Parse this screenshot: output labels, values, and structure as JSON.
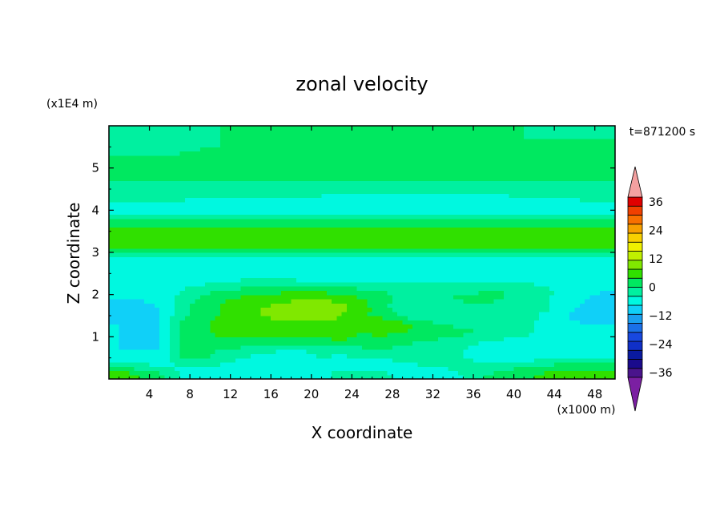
{
  "chart_data": {
    "type": "heatmap",
    "title": "zonal velocity",
    "xlabel": "X coordinate",
    "ylabel": "Z coordinate",
    "x_scale_label": "(x1000 m)",
    "y_scale_label": "(x1E4 m)",
    "time_label": "t=871200 s",
    "xlim": [
      0,
      50
    ],
    "ylim": [
      0,
      6
    ],
    "x_ticks": [
      "4",
      "8",
      "12",
      "16",
      "20",
      "24",
      "28",
      "32",
      "36",
      "40",
      "44",
      "48"
    ],
    "x_tick_values": [
      4,
      8,
      12,
      16,
      20,
      24,
      28,
      32,
      36,
      40,
      44,
      48
    ],
    "y_ticks": [
      "1",
      "2",
      "3",
      "4",
      "5"
    ],
    "y_tick_values": [
      1,
      2,
      3,
      4,
      5
    ],
    "colorbar": {
      "range": [
        -42,
        42
      ],
      "step": 4,
      "tick_labels": [
        "36",
        "24",
        "12",
        "0",
        "−12",
        "−24",
        "−36"
      ],
      "tick_values": [
        36,
        24,
        12,
        0,
        -12,
        -24,
        -36
      ],
      "colors": [
        "#7b1fa2",
        "#4a148c",
        "#1a0a8c",
        "#0a1aa0",
        "#1030c8",
        "#1848e0",
        "#1a70e8",
        "#1aa0f0",
        "#10d0f8",
        "#00f8e0",
        "#00f0a0",
        "#00e860",
        "#30e000",
        "#80e800",
        "#c0f000",
        "#f0f000",
        "#f8d000",
        "#f8a000",
        "#f87000",
        "#f04000",
        "#e00000",
        "#f4a0a0"
      ]
    },
    "field": {
      "rows_z": [
        0.1,
        0.3,
        0.5,
        0.7,
        0.9,
        1.1,
        1.3,
        1.5,
        1.7,
        1.9,
        2.1,
        2.3,
        2.5,
        2.7,
        2.9,
        3.1,
        3.3,
        3.5,
        3.7,
        3.9,
        4.1,
        4.3,
        4.5,
        4.7,
        4.9,
        5.1,
        5.3,
        5.5,
        5.7,
        5.9
      ],
      "cols_x": [
        1,
        3,
        5,
        7,
        9,
        11,
        13,
        15,
        17,
        19,
        21,
        23,
        25,
        27,
        29,
        31,
        33,
        35,
        37,
        39,
        41,
        43,
        45,
        47,
        49
      ],
      "values": [
        [
          9,
          6,
          3,
          -2,
          -4,
          -4,
          -4,
          -5,
          -6,
          -6,
          -5,
          2,
          1,
          -1,
          -3,
          -4,
          -3,
          -2,
          2,
          3,
          5,
          7,
          8,
          9,
          9
        ],
        [
          2,
          0,
          -2,
          -3,
          -2,
          -3,
          -4,
          -4,
          -5,
          -5,
          -5,
          -6,
          -5,
          -4,
          -3,
          -2,
          -2,
          -1,
          0,
          1,
          2,
          3,
          4,
          4,
          4
        ],
        [
          -4,
          -5,
          -5,
          2,
          3,
          1,
          -2,
          -3,
          -3,
          -3,
          -2,
          -3,
          -2,
          -2,
          -1,
          -1,
          -2,
          -2,
          -3,
          -3,
          -4,
          -3,
          -2,
          -2,
          -2
        ],
        [
          -6,
          -6,
          -6,
          3,
          3,
          2,
          1,
          -1,
          -2,
          -2,
          -1,
          0,
          1,
          2,
          1,
          0,
          -1,
          -2,
          -3,
          -3,
          -4,
          -5,
          -5,
          -5,
          -5
        ],
        [
          -6,
          -7,
          -6,
          3,
          4,
          5,
          5,
          4,
          4,
          4,
          5,
          6,
          5,
          4,
          3,
          2,
          1,
          -1,
          -2,
          -3,
          -4,
          -5,
          -6,
          -6,
          -6
        ],
        [
          -6,
          -7,
          -6,
          3,
          5,
          7,
          7,
          7,
          7,
          7,
          8,
          7,
          6,
          7,
          6,
          5,
          4,
          3,
          2,
          1,
          -1,
          -3,
          -5,
          -6,
          -6
        ],
        [
          -6,
          -7,
          -7,
          2,
          5,
          7,
          8,
          8,
          9,
          9,
          9,
          8,
          8,
          10,
          8,
          5,
          2,
          1,
          0,
          1,
          -1,
          -3,
          -5,
          -6,
          -6
        ],
        [
          -7,
          -8,
          -7,
          1,
          4,
          6,
          8,
          10,
          11,
          12,
          12,
          10,
          6,
          5,
          1,
          -1,
          -2,
          -1,
          1,
          2,
          0,
          -3,
          -6,
          -7,
          -7
        ],
        [
          -7,
          -7,
          -6,
          0,
          4,
          6,
          8,
          10,
          11,
          12,
          12,
          11,
          8,
          3,
          -1,
          -2,
          -2,
          -1,
          0,
          1,
          1,
          -1,
          -5,
          -7,
          -8
        ],
        [
          -6,
          -6,
          -5,
          -1,
          3,
          5,
          7,
          8,
          9,
          10,
          10,
          9,
          6,
          3,
          1,
          1,
          2,
          3,
          3,
          2,
          1,
          -1,
          -4,
          -6,
          -7
        ],
        [
          -5,
          -5,
          -4,
          -2,
          0,
          2,
          3,
          4,
          5,
          6,
          5,
          4,
          3,
          2,
          1,
          0,
          0,
          1,
          2,
          2,
          1,
          -1,
          -3,
          -5,
          -6
        ],
        [
          -5,
          -5,
          -5,
          -4,
          -3,
          -2,
          -1,
          0,
          0,
          -1,
          -1,
          -1,
          -2,
          -2,
          -2,
          -2,
          -2,
          -2,
          -1,
          -1,
          -2,
          -3,
          -4,
          -5,
          -5
        ],
        [
          -5,
          -6,
          -6,
          -6,
          -6,
          -6,
          -5,
          -5,
          -5,
          -6,
          -6,
          -6,
          -6,
          -6,
          -6,
          -5,
          -5,
          -5,
          -5,
          -5,
          -5,
          -5,
          -5,
          -5,
          -5
        ],
        [
          -6,
          -6,
          -6,
          -6,
          -6,
          -6,
          -6,
          -6,
          -6,
          -6,
          -6,
          -6,
          -6,
          -6,
          -6,
          -6,
          -6,
          -6,
          -6,
          -6,
          -6,
          -6,
          -6,
          -6,
          -6
        ],
        [
          -3,
          -3,
          -3,
          -3,
          -3,
          -3,
          -3,
          -3,
          -3,
          -3,
          -3,
          -3,
          -3,
          -3,
          -3,
          -3,
          -3,
          -3,
          -3,
          -3,
          -3,
          -3,
          -3,
          -3,
          -3
        ],
        [
          7,
          7,
          6,
          6,
          6,
          6,
          6,
          6,
          6,
          6,
          6,
          6,
          7,
          7,
          7,
          7,
          8,
          8,
          8,
          8,
          8,
          7,
          7,
          7,
          7
        ],
        [
          8,
          8,
          8,
          8,
          8,
          8,
          8,
          8,
          8,
          8,
          8,
          8,
          8,
          9,
          9,
          9,
          10,
          10,
          10,
          9,
          9,
          8,
          8,
          8,
          8
        ],
        [
          7,
          7,
          7,
          7,
          7,
          7,
          7,
          7,
          7,
          7,
          7,
          7,
          7,
          7,
          7,
          7,
          7,
          7,
          7,
          7,
          7,
          7,
          7,
          7,
          7
        ],
        [
          5,
          5,
          5,
          5,
          5,
          5,
          5,
          5,
          5,
          5,
          5,
          5,
          5,
          5,
          5,
          5,
          5,
          5,
          5,
          5,
          5,
          5,
          5,
          5,
          5
        ],
        [
          -4,
          -4,
          -4,
          -4,
          -4,
          -4,
          -4,
          -4,
          -4,
          -4,
          -4,
          -4,
          -4,
          -4,
          -4,
          -4,
          -4,
          -4,
          -4,
          -4,
          -4,
          -4,
          -4,
          -4,
          -4
        ],
        [
          -4,
          -4,
          -4,
          -4,
          -4,
          -4,
          -4,
          -4,
          -4,
          -4,
          -4,
          -4,
          -4,
          -4,
          -4,
          -4,
          -4,
          -4,
          -4,
          -4,
          -4,
          -4,
          -4,
          -4,
          -4
        ],
        [
          -1,
          -1,
          -1,
          -1,
          -2,
          -2,
          -2,
          -2,
          -2,
          -2,
          -3,
          -3,
          -3,
          -3,
          -3,
          -3,
          -3,
          -3,
          -3,
          -3,
          -2,
          -2,
          -2,
          -1,
          -1
        ],
        [
          1,
          1,
          1,
          1,
          1,
          1,
          1,
          1,
          1,
          1,
          1,
          0,
          0,
          0,
          0,
          -1,
          -1,
          -1,
          -1,
          0,
          0,
          0,
          1,
          1,
          1
        ],
        [
          2,
          2,
          2,
          2,
          2,
          2,
          2,
          2,
          2,
          2,
          2,
          2,
          2,
          2,
          2,
          2,
          2,
          2,
          2,
          2,
          2,
          2,
          2,
          2,
          2
        ],
        [
          3,
          3,
          3,
          3,
          3,
          3,
          3,
          3,
          3,
          3,
          3,
          3,
          3,
          3,
          3,
          3,
          3,
          3,
          3,
          3,
          3,
          3,
          3,
          3,
          3
        ],
        [
          3,
          3,
          3,
          3,
          3,
          3,
          3,
          3,
          3,
          3,
          3,
          3,
          3,
          3,
          3,
          3,
          3,
          3,
          3,
          3,
          3,
          3,
          3,
          3,
          3
        ],
        [
          3,
          3,
          3,
          3,
          3,
          3,
          3,
          3,
          3,
          3,
          3,
          3,
          3,
          3,
          3,
          3,
          3,
          3,
          3,
          3,
          3,
          3,
          3,
          3,
          3
        ],
        [
          -1,
          -1,
          -1,
          -1,
          2,
          2,
          2,
          2,
          2,
          2,
          2,
          2,
          2,
          2,
          2,
          2,
          2,
          2,
          2,
          2,
          2,
          2,
          2,
          2,
          2
        ],
        [
          -1,
          -1,
          -1,
          -1,
          -1,
          2,
          2,
          2,
          2,
          2,
          2,
          2,
          2,
          2,
          2,
          2,
          2,
          2,
          2,
          2,
          2,
          2,
          2,
          2,
          2
        ],
        [
          -1,
          -1,
          -1,
          -1,
          -1,
          2,
          2,
          2,
          2,
          2,
          2,
          2,
          2,
          2,
          2,
          2,
          2,
          2,
          2,
          2,
          2,
          -1,
          -1,
          -1,
          -1
        ]
      ]
    }
  }
}
